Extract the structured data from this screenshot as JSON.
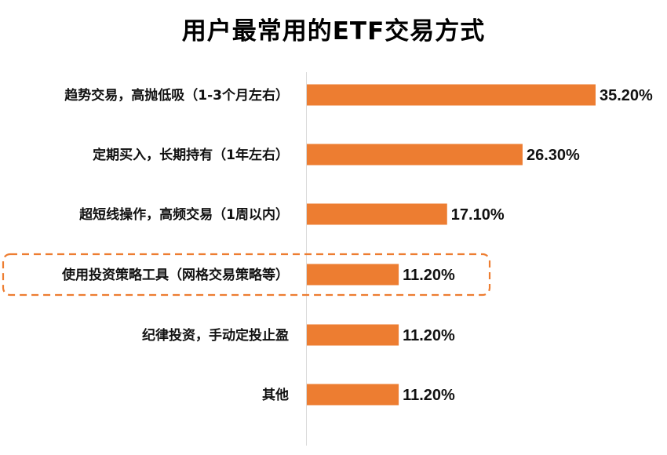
{
  "chart_data": {
    "type": "bar",
    "orientation": "horizontal",
    "title": "用户最常用的ETF交易方式",
    "categories": [
      "趋势交易，高抛低吸（1-3个月左右）",
      "定期买入，长期持有（1年左右）",
      "超短线操作，高频交易（1周以内）",
      "使用投资策略工具（网格交易策略等）",
      "纪律投资，手动定投止盈",
      "其他"
    ],
    "values": [
      35.2,
      26.3,
      17.1,
      11.2,
      11.2,
      11.2
    ],
    "value_labels": [
      "35.20%",
      "26.30%",
      "17.10%",
      "11.20%",
      "11.20%",
      "11.20%"
    ],
    "unit": "%",
    "xlim": [
      0,
      35.2
    ],
    "grid": false,
    "legend": "none",
    "bar_color": "#ED7D31",
    "highlight_color": "#ED7D31",
    "highlighted_category_index": 3
  }
}
